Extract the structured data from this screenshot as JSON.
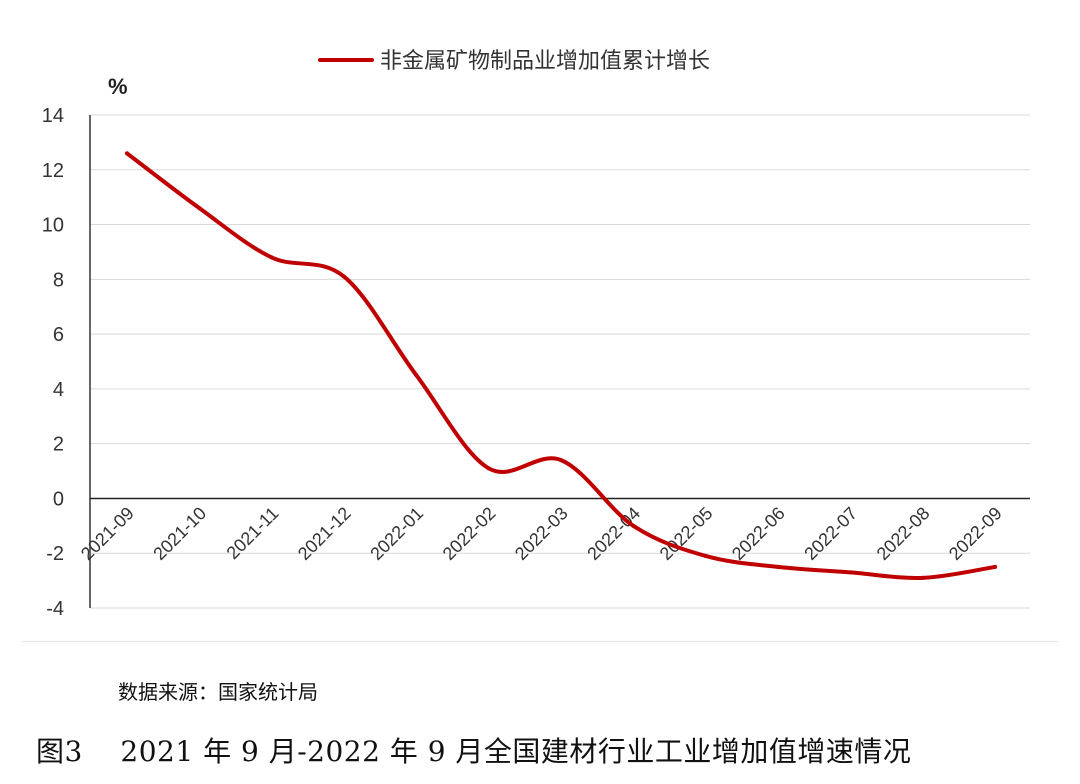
{
  "chart_data": {
    "type": "line",
    "title": "",
    "ylabel": "%",
    "xlabel": "",
    "ylim": [
      -4,
      14
    ],
    "yticks": [
      14,
      12,
      10,
      8,
      6,
      4,
      2,
      0,
      -2,
      -4
    ],
    "grid": true,
    "legend": "top-center",
    "categories": [
      "2021-09",
      "2021-10",
      "2021-11",
      "2021-12",
      "2022-01",
      "2022-02",
      "2022-03",
      "2022-04",
      "2022-05",
      "2022-06",
      "2022-07",
      "2022-08",
      "2022-09"
    ],
    "series": [
      {
        "name": "非金属矿物制品业增加值累计增长",
        "color": "#c00000",
        "values": [
          12.6,
          10.6,
          8.8,
          8.1,
          4.5,
          1.1,
          1.4,
          -1.0,
          -2.1,
          -2.5,
          -2.7,
          -2.9,
          -2.5
        ]
      }
    ]
  },
  "footer": {
    "source": "数据来源：国家统计局",
    "caption": "图3    2021 年 9 月-2022 年 9 月全国建材行业工业增加值增速情况"
  }
}
